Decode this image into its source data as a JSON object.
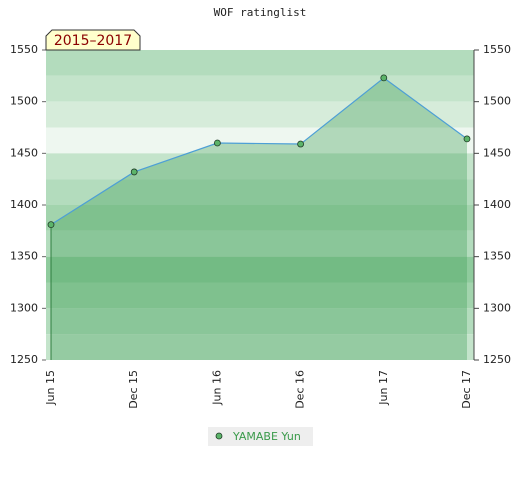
{
  "chart_data": {
    "type": "line",
    "title": "WOF ratinglist",
    "annotation": "2015–2017",
    "categories": [
      "Jun 15",
      "Dec 15",
      "Jun 16",
      "Dec 16",
      "Jun 17",
      "Dec 17"
    ],
    "series": [
      {
        "name": "YAMABE Yun",
        "color": "#4d9fd6",
        "marker_color": "#5cb46a",
        "fill_color": "#3f9f55",
        "values": [
          1381,
          1432,
          1460,
          1459,
          1523,
          1464
        ]
      }
    ],
    "ylim": [
      1250,
      1550
    ],
    "yticks": [
      1250,
      1300,
      1350,
      1400,
      1450,
      1500,
      1550
    ],
    "y2lim": [
      1250,
      1550
    ],
    "y2ticks": [
      1250,
      1300,
      1350,
      1400,
      1450,
      1500,
      1550
    ],
    "legend": "bottom"
  }
}
